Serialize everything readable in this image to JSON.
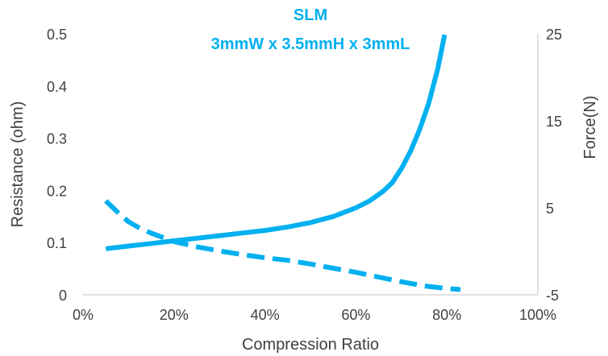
{
  "chart_data": {
    "type": "line",
    "title": "SLM",
    "subtitle": "3mmW x 3.5mmH x 3mmL",
    "xlabel": "Compression Ratio",
    "ylabel": "Resistance (ohm)",
    "y2label": "Force(N)",
    "xlim": [
      0,
      1
    ],
    "ylim": [
      0,
      0.5
    ],
    "y2lim": [
      -5,
      25
    ],
    "x_ticks": [
      "0%",
      "20%",
      "40%",
      "60%",
      "80%",
      "100%"
    ],
    "y_ticks": [
      "0",
      "0.1",
      "0.2",
      "0.3",
      "0.4",
      "0.5"
    ],
    "y2_ticks": [
      "-5",
      "5",
      "15",
      "25"
    ],
    "grid": false,
    "legend": "none",
    "color": "#00b0f0",
    "series": [
      {
        "axis": "right",
        "style": "solid",
        "x": [
          0.05,
          0.1,
          0.15,
          0.2,
          0.25,
          0.3,
          0.35,
          0.4,
          0.45,
          0.5,
          0.55,
          0.6,
          0.63,
          0.66,
          0.68,
          0.7,
          0.72,
          0.74,
          0.76,
          0.78,
          0.795
        ],
        "y": [
          0.3,
          0.6,
          0.9,
          1.2,
          1.5,
          1.8,
          2.1,
          2.4,
          2.8,
          3.3,
          4.0,
          5.0,
          5.8,
          6.9,
          7.9,
          9.5,
          11.5,
          14.0,
          17.0,
          21.0,
          24.9
        ]
      },
      {
        "axis": "left",
        "style": "dashed",
        "x": [
          0.05,
          0.08,
          0.1,
          0.12,
          0.15,
          0.2,
          0.25,
          0.3,
          0.35,
          0.4,
          0.45,
          0.5,
          0.55,
          0.6,
          0.65,
          0.7,
          0.75,
          0.8,
          0.83
        ],
        "y": [
          0.18,
          0.155,
          0.14,
          0.13,
          0.118,
          0.102,
          0.092,
          0.084,
          0.077,
          0.071,
          0.066,
          0.059,
          0.051,
          0.043,
          0.034,
          0.025,
          0.017,
          0.012,
          0.01
        ]
      }
    ]
  }
}
